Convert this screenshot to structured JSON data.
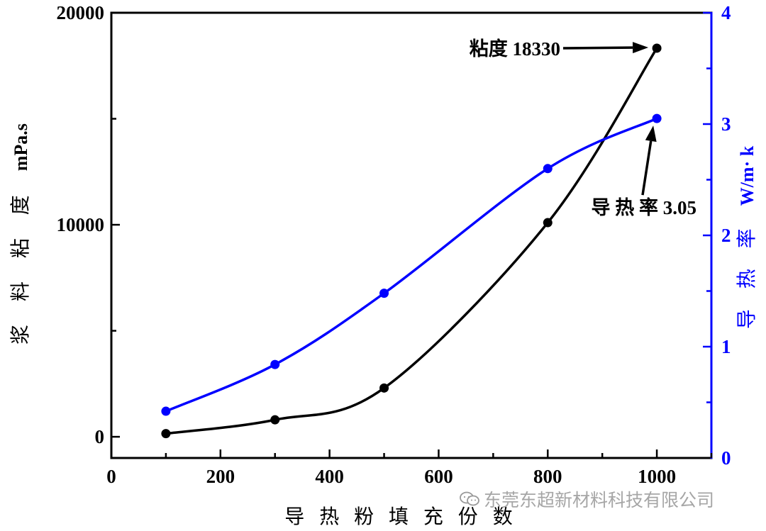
{
  "chart_data": {
    "type": "line",
    "title": "",
    "xlabel": "导 热 粉 填 充 份 数",
    "ylabel_left": "浆 料 粘 度",
    "ylabel_left_unit": "mPa.s",
    "ylabel_right": "导 热 率",
    "ylabel_right_unit": "W/m· k",
    "x_ticks": [
      "0",
      "200",
      "400",
      "600",
      "800",
      "1000"
    ],
    "y_left_ticks": [
      "0",
      "10000",
      "20000"
    ],
    "y_right_ticks": [
      "0",
      "1",
      "2",
      "3",
      "4"
    ],
    "xlim": [
      0,
      1100
    ],
    "ylim_left": [
      -1000,
      20000
    ],
    "ylim_right": [
      0,
      4
    ],
    "colors": {
      "viscosity": "#000000",
      "conductivity": "#0000ff"
    },
    "series": [
      {
        "name": "viscosity",
        "axis": "left",
        "x": [
          100,
          300,
          500,
          800,
          1000
        ],
        "values": [
          150,
          800,
          2300,
          10100,
          18330
        ]
      },
      {
        "name": "conductivity",
        "axis": "right",
        "x": [
          100,
          300,
          500,
          800,
          1000
        ],
        "values": [
          0.42,
          0.84,
          1.48,
          2.6,
          3.05
        ]
      }
    ],
    "annotations": [
      {
        "text": "粘度 18330",
        "series": "viscosity",
        "x": 1000,
        "y": 18330
      },
      {
        "text": "导 热 率 3.05",
        "series": "conductivity",
        "x": 1000,
        "y": 3.05
      }
    ]
  },
  "watermark": {
    "text": "东莞东超新材料科技有限公司",
    "icon": "wechat-icon"
  }
}
